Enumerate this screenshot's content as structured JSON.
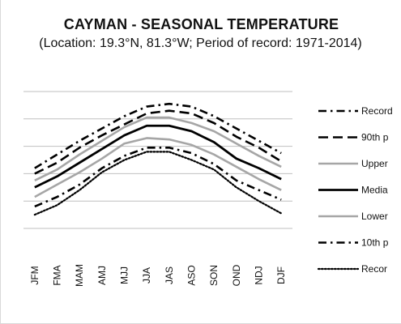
{
  "chart_data": {
    "type": "line",
    "title": "CAYMAN - SEASONAL TEMPERATURE",
    "subtitle": "(Location: 19.3°N, 81.3°W; Period of record: 1971-2014)",
    "xlabel": "",
    "ylabel": "",
    "categories": [
      "JFM",
      "FMA",
      "MAM",
      "AMJ",
      "MJJ",
      "JJA",
      "JAS",
      "ASO",
      "SON",
      "OND",
      "NDJ",
      "DJF"
    ],
    "ylim": [
      22,
      32
    ],
    "grid": true,
    "legend_position": "right",
    "series": [
      {
        "name": "Record",
        "color": "#000000",
        "style": "dash-dot",
        "values": [
          26.4,
          27.4,
          28.4,
          29.3,
          30.2,
          30.9,
          31.1,
          30.9,
          30.2,
          29.3,
          28.4,
          27.5
        ]
      },
      {
        "name": "90th p",
        "color": "#000000",
        "style": "long-dash",
        "values": [
          26.0,
          26.8,
          27.9,
          28.8,
          29.6,
          30.4,
          30.6,
          30.4,
          29.7,
          28.7,
          27.9,
          26.9
        ]
      },
      {
        "name": "Upper",
        "color": "#a6a6a6",
        "style": "solid",
        "values": [
          25.5,
          26.3,
          27.4,
          28.4,
          29.4,
          30.1,
          30.1,
          29.7,
          29.1,
          28.2,
          27.3,
          26.5
        ]
      },
      {
        "name": "Media",
        "color": "#000000",
        "style": "solid-bold",
        "values": [
          25.0,
          25.8,
          26.8,
          27.8,
          28.8,
          29.5,
          29.5,
          29.1,
          28.3,
          27.1,
          26.4,
          25.6
        ]
      },
      {
        "name": "Lower",
        "color": "#a6a6a6",
        "style": "solid",
        "values": [
          24.3,
          25.2,
          26.1,
          27.1,
          28.2,
          28.6,
          28.5,
          28.1,
          27.4,
          26.5,
          25.6,
          24.8
        ]
      },
      {
        "name": "10th p",
        "color": "#000000",
        "style": "dash-dot",
        "values": [
          23.6,
          24.3,
          25.2,
          26.4,
          27.3,
          27.9,
          27.9,
          27.5,
          26.7,
          25.5,
          24.8,
          24.1
        ]
      },
      {
        "name": "Recor",
        "color": "#000000",
        "style": "dotted",
        "values": [
          23.0,
          23.7,
          24.8,
          26.1,
          27.0,
          27.6,
          27.6,
          27.0,
          26.3,
          25.0,
          24.0,
          23.1
        ]
      }
    ]
  }
}
